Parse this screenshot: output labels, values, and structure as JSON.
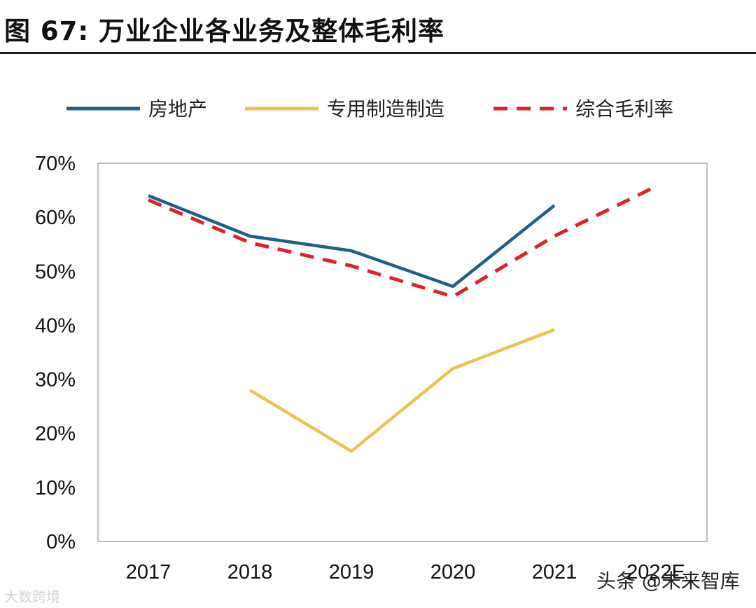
{
  "header": {
    "title": "图 67:  万业企业各业务及整体毛利率"
  },
  "chart_data": {
    "type": "line",
    "title": "万业企业各业务及整体毛利率",
    "categories": [
      "2017",
      "2018",
      "2019",
      "2020",
      "2021",
      "2022E"
    ],
    "y_tick_labels": [
      "0%",
      "10%",
      "20%",
      "30%",
      "40%",
      "50%",
      "60%",
      "70%"
    ],
    "ylim": [
      0,
      70
    ],
    "y_unit": "%",
    "legend_position": "top",
    "series": [
      {
        "name": "房地产",
        "values": [
          64,
          56.5,
          53.8,
          47.2,
          62.2,
          null
        ],
        "color": "#1f5f8b",
        "dash": false
      },
      {
        "name": "专用制造制造",
        "values": [
          null,
          28,
          16.7,
          32,
          39.2,
          null
        ],
        "color": "#e8c454",
        "dash": false
      },
      {
        "name": "综合毛利率",
        "values": [
          63.2,
          55.3,
          51,
          45.3,
          56.5,
          65.7
        ],
        "color": "#e0202a",
        "dash": true
      }
    ]
  },
  "watermarks": {
    "left": "大数跨境",
    "right": "头条 @未来智库"
  }
}
